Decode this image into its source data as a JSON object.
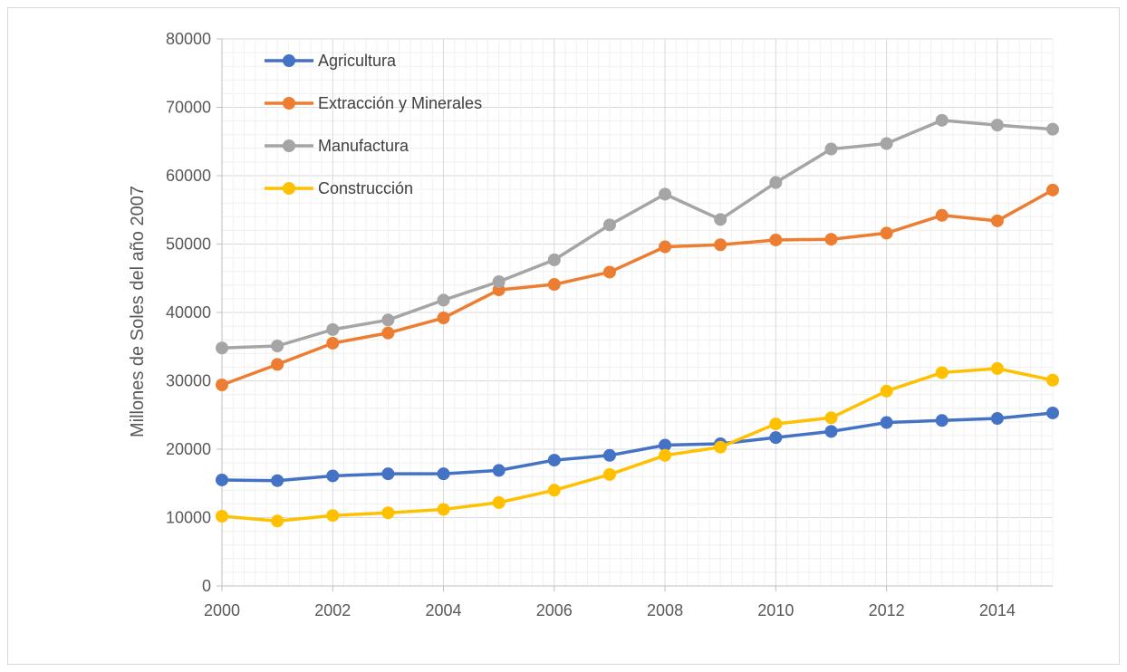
{
  "chart_data": {
    "type": "line",
    "title": "",
    "xlabel": "",
    "ylabel": "Millones de Soles del año 2007",
    "xlim": [
      2000,
      2015
    ],
    "ylim": [
      0,
      80000
    ],
    "grid": true,
    "legend_position": "top-left",
    "x": [
      2000,
      2001,
      2002,
      2003,
      2004,
      2005,
      2006,
      2007,
      2008,
      2009,
      2010,
      2011,
      2012,
      2013,
      2014,
      2015
    ],
    "x_tick_labels": [
      "2000",
      "2002",
      "2004",
      "2006",
      "2008",
      "2010",
      "2012",
      "2014"
    ],
    "y_tick_labels": [
      "0",
      "10000",
      "20000",
      "30000",
      "40000",
      "50000",
      "60000",
      "70000",
      "80000"
    ],
    "series": [
      {
        "name": "Agricultura",
        "color": "#4472c4",
        "values": [
          15500,
          15400,
          16100,
          16400,
          16400,
          16900,
          18400,
          19100,
          20600,
          20800,
          21700,
          22600,
          23900,
          24200,
          24500,
          25300
        ]
      },
      {
        "name": "Extracción y Minerales",
        "color": "#ed7d31",
        "values": [
          29400,
          32400,
          35500,
          37000,
          39200,
          43300,
          44100,
          45900,
          49600,
          49900,
          50600,
          50700,
          51600,
          54200,
          53400,
          57900
        ]
      },
      {
        "name": "Manufactura",
        "color": "#a5a5a5",
        "values": [
          34800,
          35100,
          37500,
          38900,
          41800,
          44500,
          47700,
          52800,
          57300,
          53600,
          59000,
          63900,
          64700,
          68100,
          67400,
          66800
        ]
      },
      {
        "name": "Construcción",
        "color": "#ffc000",
        "values": [
          10200,
          9500,
          10300,
          10700,
          11200,
          12200,
          14000,
          16300,
          19100,
          20300,
          23700,
          24600,
          28500,
          31200,
          31800,
          30100
        ]
      }
    ]
  }
}
